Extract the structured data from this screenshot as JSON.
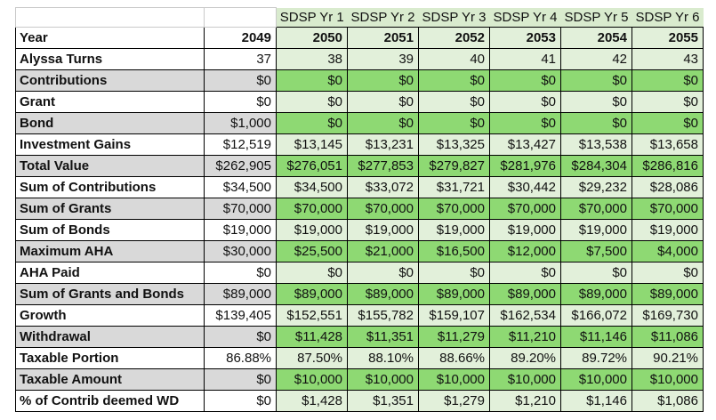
{
  "colors": {
    "dark_green": "#8ED973",
    "light_green": "#E2F0DA",
    "header_green": "#D9EBCE",
    "label_gray": "#D9D9D9",
    "grid_gray": "#C9C9C9"
  },
  "table": {
    "header": {
      "blank_label_cell": "",
      "blank_2049_cell": "",
      "year_labels": [
        "SDSP Yr 1",
        "SDSP Yr 2",
        "SDSP Yr 3",
        "SDSP Yr 4",
        "SDSP Yr 5",
        "SDSP Yr 6"
      ]
    },
    "rows": [
      {
        "label": "Year",
        "shaded": false,
        "bold_values": true,
        "values": [
          "2049",
          "2050",
          "2051",
          "2052",
          "2053",
          "2054",
          "2055"
        ]
      },
      {
        "label": "Alyssa Turns",
        "shaded": false,
        "bold_values": false,
        "values": [
          "37",
          "38",
          "39",
          "40",
          "41",
          "42",
          "43"
        ]
      },
      {
        "label": "Contributions",
        "shaded": true,
        "bold_values": false,
        "values": [
          "$0",
          "$0",
          "$0",
          "$0",
          "$0",
          "$0",
          "$0"
        ]
      },
      {
        "label": "Grant",
        "shaded": false,
        "bold_values": false,
        "values": [
          "$0",
          "$0",
          "$0",
          "$0",
          "$0",
          "$0",
          "$0"
        ]
      },
      {
        "label": "Bond",
        "shaded": true,
        "bold_values": false,
        "values": [
          "$1,000",
          "$0",
          "$0",
          "$0",
          "$0",
          "$0",
          "$0"
        ]
      },
      {
        "label": "Investment Gains",
        "shaded": false,
        "bold_values": false,
        "values": [
          "$12,519",
          "$13,145",
          "$13,231",
          "$13,325",
          "$13,427",
          "$13,538",
          "$13,658"
        ]
      },
      {
        "label": "Total Value",
        "shaded": true,
        "bold_values": false,
        "values": [
          "$262,905",
          "$276,051",
          "$277,853",
          "$279,827",
          "$281,976",
          "$284,304",
          "$286,816"
        ]
      },
      {
        "label": "Sum of Contributions",
        "shaded": false,
        "bold_values": false,
        "values": [
          "$34,500",
          "$34,500",
          "$33,072",
          "$31,721",
          "$30,442",
          "$29,232",
          "$28,086"
        ]
      },
      {
        "label": "Sum of Grants",
        "shaded": true,
        "bold_values": false,
        "values": [
          "$70,000",
          "$70,000",
          "$70,000",
          "$70,000",
          "$70,000",
          "$70,000",
          "$70,000"
        ]
      },
      {
        "label": "Sum of Bonds",
        "shaded": false,
        "bold_values": false,
        "values": [
          "$19,000",
          "$19,000",
          "$19,000",
          "$19,000",
          "$19,000",
          "$19,000",
          "$19,000"
        ]
      },
      {
        "label": "Maximum AHA",
        "shaded": true,
        "bold_values": false,
        "values": [
          "$30,000",
          "$25,500",
          "$21,000",
          "$16,500",
          "$12,000",
          "$7,500",
          "$4,000"
        ]
      },
      {
        "label": "AHA Paid",
        "shaded": false,
        "bold_values": false,
        "values": [
          "$0",
          "$0",
          "$0",
          "$0",
          "$0",
          "$0",
          "$0"
        ]
      },
      {
        "label": "Sum of Grants and Bonds",
        "shaded": true,
        "bold_values": false,
        "values": [
          "$89,000",
          "$89,000",
          "$89,000",
          "$89,000",
          "$89,000",
          "$89,000",
          "$89,000"
        ]
      },
      {
        "label": "Growth",
        "shaded": false,
        "bold_values": false,
        "values": [
          "$139,405",
          "$152,551",
          "$155,782",
          "$159,107",
          "$162,534",
          "$166,072",
          "$169,730"
        ]
      },
      {
        "label": "Withdrawal",
        "shaded": true,
        "bold_values": false,
        "values": [
          "$0",
          "$11,428",
          "$11,351",
          "$11,279",
          "$11,210",
          "$11,146",
          "$11,086"
        ]
      },
      {
        "label": "Taxable Portion",
        "shaded": false,
        "bold_values": false,
        "values": [
          "86.88%",
          "87.50%",
          "88.10%",
          "88.66%",
          "89.20%",
          "89.72%",
          "90.21%"
        ]
      },
      {
        "label": "Taxable Amount",
        "shaded": true,
        "bold_values": false,
        "values": [
          "$0",
          "$10,000",
          "$10,000",
          "$10,000",
          "$10,000",
          "$10,000",
          "$10,000"
        ]
      },
      {
        "label": "% of Contrib deemed WD",
        "shaded": false,
        "bold_values": false,
        "values": [
          "$0",
          "$1,428",
          "$1,351",
          "$1,279",
          "$1,210",
          "$1,146",
          "$1,086"
        ]
      }
    ]
  }
}
